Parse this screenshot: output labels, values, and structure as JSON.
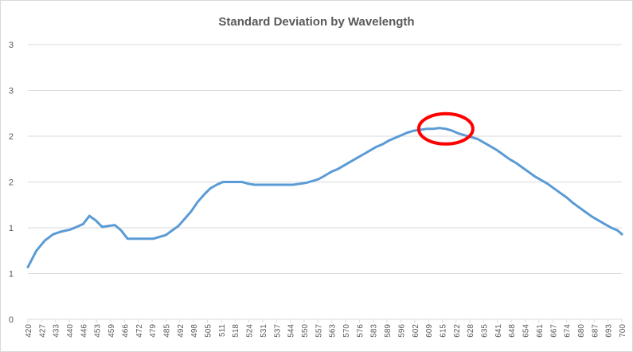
{
  "chart_data": {
    "type": "line",
    "title": "Standard Deviation by Wavelength",
    "xlabel": "",
    "ylabel": "",
    "x_tick_labels": [
      "420",
      "427",
      "433",
      "440",
      "446",
      "453",
      "459",
      "466",
      "472",
      "479",
      "485",
      "492",
      "498",
      "505",
      "511",
      "518",
      "524",
      "531",
      "537",
      "544",
      "550",
      "557",
      "563",
      "570",
      "576",
      "583",
      "589",
      "596",
      "602",
      "609",
      "615",
      "622",
      "628",
      "635",
      "641",
      "648",
      "654",
      "661",
      "667",
      "674",
      "680",
      "687",
      "693",
      "700"
    ],
    "y_tick_labels": [
      "0",
      "1",
      "1",
      "2",
      "2",
      "3",
      "3"
    ],
    "ylim": [
      0,
      3
    ],
    "xlim": [
      420,
      700
    ],
    "grid": "horizontal",
    "legend": "none",
    "series": [
      {
        "color": "#5b9bd5",
        "x": [
          420,
          424,
          428,
          432,
          436,
          440,
          443,
          446,
          449,
          452,
          455,
          458,
          461,
          464,
          467,
          470,
          473,
          476,
          479,
          482,
          485,
          488,
          491,
          494,
          497,
          500,
          503,
          506,
          509,
          512,
          515,
          518,
          521,
          524,
          527,
          530,
          533,
          536,
          539,
          542,
          545,
          548,
          551,
          554,
          557,
          560,
          563,
          566,
          569,
          572,
          575,
          578,
          581,
          584,
          587,
          590,
          593,
          596,
          599,
          602,
          605,
          608,
          611,
          614,
          617,
          620,
          623,
          626,
          629,
          632,
          635,
          638,
          641,
          644,
          647,
          650,
          653,
          656,
          659,
          662,
          665,
          668,
          671,
          674,
          677,
          680,
          683,
          686,
          689,
          692,
          695,
          698,
          700
        ],
        "y": [
          0.57,
          0.75,
          0.86,
          0.93,
          0.96,
          0.98,
          1.01,
          1.04,
          1.13,
          1.08,
          1.01,
          1.02,
          1.03,
          0.97,
          0.88,
          0.88,
          0.88,
          0.88,
          0.88,
          0.9,
          0.92,
          0.97,
          1.02,
          1.1,
          1.18,
          1.28,
          1.36,
          1.43,
          1.47,
          1.5,
          1.5,
          1.5,
          1.5,
          1.48,
          1.47,
          1.47,
          1.47,
          1.47,
          1.47,
          1.47,
          1.47,
          1.48,
          1.49,
          1.51,
          1.53,
          1.57,
          1.61,
          1.64,
          1.68,
          1.72,
          1.76,
          1.8,
          1.84,
          1.88,
          1.91,
          1.95,
          1.98,
          2.01,
          2.04,
          2.06,
          2.07,
          2.08,
          2.08,
          2.09,
          2.08,
          2.06,
          2.03,
          2.01,
          1.99,
          1.97,
          1.93,
          1.89,
          1.85,
          1.8,
          1.75,
          1.71,
          1.66,
          1.61,
          1.56,
          1.52,
          1.48,
          1.43,
          1.38,
          1.33,
          1.27,
          1.22,
          1.17,
          1.12,
          1.08,
          1.04,
          1.0,
          0.97,
          0.93
        ]
      }
    ],
    "annotation": {
      "shape": "ellipse",
      "color": "#ff0000",
      "x_center": 617,
      "y_center": 2.08
    }
  }
}
